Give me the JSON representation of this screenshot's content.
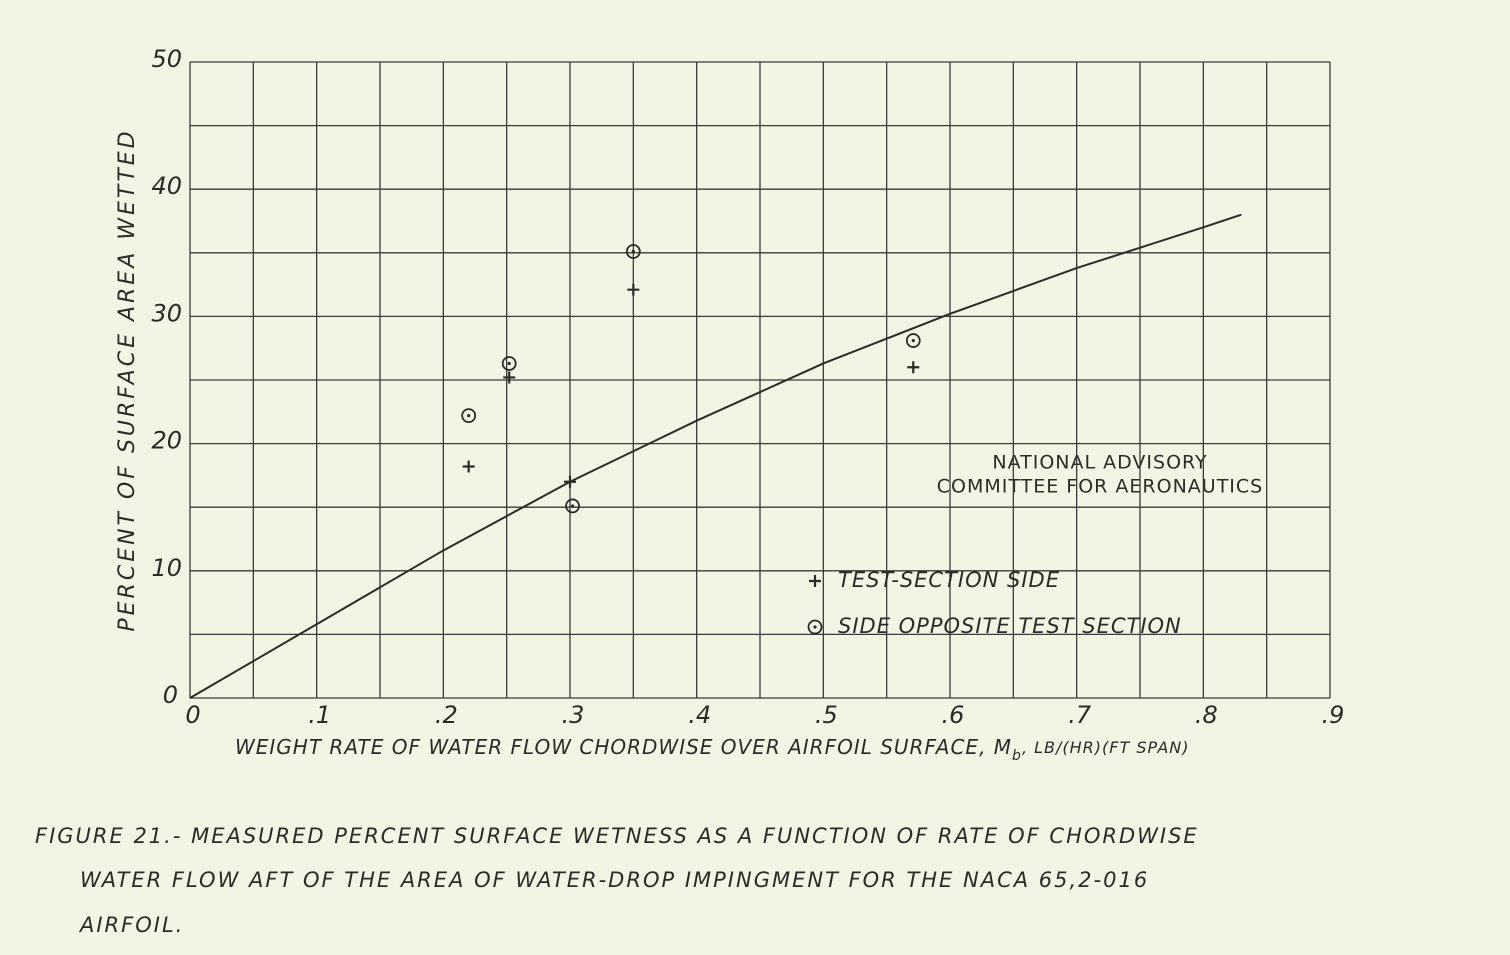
{
  "chart_data": {
    "type": "scatter",
    "ylabel": "PERCENT OF SURFACE AREA WETTED",
    "xlabel": [
      "WEIGHT RATE OF WATER FLOW CHORDWISE OVER AIRFOIL SURFACE, M",
      "b",
      ", LB/(HR)(FT SPAN)"
    ],
    "xlim": [
      0,
      0.9
    ],
    "ylim": [
      0,
      50
    ],
    "xticks": [
      0,
      {
        "value": 0.1,
        "label": ".1"
      },
      {
        "value": 0.2,
        "label": ".2"
      },
      {
        "value": 0.3,
        "label": ".3"
      },
      {
        "value": 0.4,
        "label": ".4"
      },
      {
        "value": 0.5,
        "label": ".5"
      },
      {
        "value": 0.6,
        "label": ".6"
      },
      {
        "value": 0.7,
        "label": ".7"
      },
      {
        "value": 0.8,
        "label": ".8"
      },
      {
        "value": 0.9,
        "label": ".9"
      }
    ],
    "yticks": [
      0,
      10,
      20,
      30,
      40,
      50
    ],
    "xgrid": [
      0,
      0.05,
      0.1,
      0.15,
      0.2,
      0.25,
      0.3,
      0.35,
      0.4,
      0.45,
      0.5,
      0.55,
      0.6,
      0.65,
      0.7,
      0.75,
      0.8,
      0.85,
      0.9
    ],
    "ygrid": [
      0,
      5,
      10,
      15,
      20,
      25,
      30,
      35,
      40,
      45,
      50
    ],
    "grid": true,
    "series": [
      {
        "name": "TEST-SECTION SIDE",
        "marker": "plus",
        "color": "#2b2b28",
        "x": [
          0.22,
          0.252,
          0.3,
          0.35,
          0.571
        ],
        "values": [
          18.2,
          25.2,
          17.0,
          32.1,
          26.0
        ]
      },
      {
        "name": "SIDE OPPOSITE TEST SECTION",
        "marker": "circle-dot",
        "color": "#2b2b28",
        "x": [
          0.22,
          0.252,
          0.302,
          0.35,
          0.571
        ],
        "values": [
          22.2,
          26.3,
          15.1,
          35.1,
          28.1
        ]
      }
    ],
    "curve": {
      "color": "#2b2b28",
      "x": [
        0,
        0.1,
        0.2,
        0.3,
        0.4,
        0.5,
        0.6,
        0.7,
        0.8,
        0.83
      ],
      "values": [
        0,
        5.8,
        11.6,
        17.0,
        21.8,
        26.3,
        30.2,
        33.8,
        37.0,
        38.0
      ]
    },
    "annotation": [
      "NATIONAL ADVISORY",
      "COMMITTEE FOR AERONAUTICS"
    ],
    "caption": [
      "FIGURE 21.- MEASURED PERCENT SURFACE WETNESS AS A FUNCTION OF RATE OF CHORDWISE",
      "WATER FLOW AFT OF THE AREA OF WATER-DROP IMPINGMENT FOR THE NACA 65,2-016",
      "AIRFOIL."
    ]
  }
}
